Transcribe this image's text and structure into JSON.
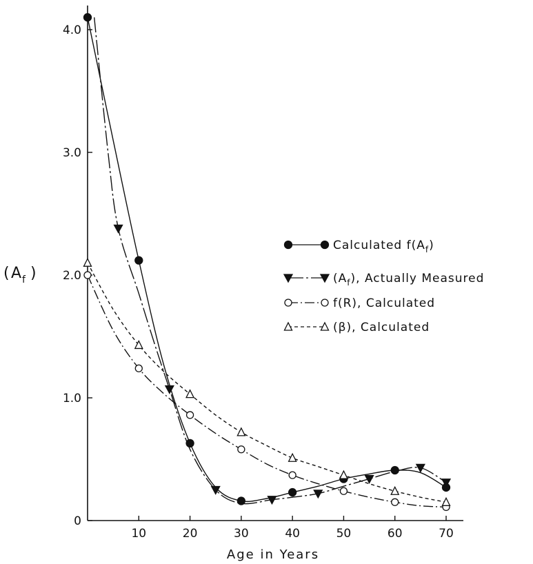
{
  "chart_data": {
    "type": "line",
    "xlabel": "Age in Years",
    "ylabel": {
      "main": "A",
      "sub": "f"
    },
    "xlim": [
      0,
      70
    ],
    "ylim": [
      0,
      4.1
    ],
    "x_ticks": [
      "10",
      "20",
      "30",
      "40",
      "50",
      "60",
      "70"
    ],
    "y_ticks": [
      "0",
      "1.0",
      "2.0",
      "3.0",
      "4.0"
    ],
    "grid": false,
    "legend_position": "right",
    "series": [
      {
        "name": "Calculated f(A",
        "name_sub": "f",
        "name_after": ")",
        "marker": "filled-circle",
        "dash": "solid",
        "x": [
          0,
          10,
          20,
          30,
          40,
          50,
          60,
          70
        ],
        "y": [
          4.1,
          2.12,
          0.63,
          0.16,
          0.23,
          0.34,
          0.41,
          0.27
        ],
        "curve": [
          [
            0,
            4.1
          ],
          [
            5,
            3.1
          ],
          [
            10,
            2.12
          ],
          [
            15,
            1.25
          ],
          [
            20,
            0.63
          ],
          [
            25,
            0.27
          ],
          [
            30,
            0.16
          ],
          [
            35,
            0.18
          ],
          [
            40,
            0.23
          ],
          [
            45,
            0.28
          ],
          [
            50,
            0.34
          ],
          [
            55,
            0.38
          ],
          [
            60,
            0.41
          ],
          [
            65,
            0.39
          ],
          [
            70,
            0.27
          ]
        ]
      },
      {
        "name": "(A",
        "name_sub": "f",
        "name_after": "), Actually Measured",
        "marker": "filled-triangle-down",
        "dash": "long-dash",
        "x": [
          6,
          16,
          25,
          36,
          45,
          55,
          65,
          70
        ],
        "y": [
          2.38,
          1.07,
          0.25,
          0.17,
          0.22,
          0.34,
          0.43,
          0.31
        ],
        "curve": [
          [
            1.3,
            4.1
          ],
          [
            4,
            3.0
          ],
          [
            6,
            2.38
          ],
          [
            10,
            1.85
          ],
          [
            13,
            1.45
          ],
          [
            16,
            1.07
          ],
          [
            20,
            0.58
          ],
          [
            25,
            0.25
          ],
          [
            30,
            0.14
          ],
          [
            36,
            0.17
          ],
          [
            40,
            0.19
          ],
          [
            45,
            0.22
          ],
          [
            50,
            0.28
          ],
          [
            55,
            0.34
          ],
          [
            60,
            0.4
          ],
          [
            65,
            0.43
          ],
          [
            70,
            0.31
          ]
        ]
      },
      {
        "name": "f(R), Calculated",
        "marker": "open-circle",
        "dash": "dash-dot",
        "x": [
          0,
          10,
          20,
          30,
          40,
          50,
          60,
          70
        ],
        "y": [
          2.0,
          1.24,
          0.86,
          0.58,
          0.37,
          0.24,
          0.15,
          0.11
        ],
        "curve": [
          [
            0,
            2.0
          ],
          [
            5,
            1.55
          ],
          [
            10,
            1.24
          ],
          [
            15,
            1.03
          ],
          [
            20,
            0.86
          ],
          [
            25,
            0.71
          ],
          [
            30,
            0.58
          ],
          [
            35,
            0.46
          ],
          [
            40,
            0.37
          ],
          [
            45,
            0.3
          ],
          [
            50,
            0.24
          ],
          [
            55,
            0.19
          ],
          [
            60,
            0.15
          ],
          [
            65,
            0.12
          ],
          [
            70,
            0.11
          ]
        ]
      },
      {
        "name": "(β), Calculated",
        "marker": "open-triangle-up",
        "dash": "short-dash",
        "x": [
          0,
          10,
          20,
          30,
          40,
          50,
          60,
          70
        ],
        "y": [
          2.1,
          1.43,
          1.03,
          0.72,
          0.51,
          0.37,
          0.24,
          0.15
        ],
        "curve": [
          [
            0,
            2.1
          ],
          [
            5,
            1.72
          ],
          [
            10,
            1.43
          ],
          [
            15,
            1.21
          ],
          [
            20,
            1.03
          ],
          [
            25,
            0.86
          ],
          [
            30,
            0.72
          ],
          [
            35,
            0.61
          ],
          [
            40,
            0.51
          ],
          [
            45,
            0.44
          ],
          [
            50,
            0.37
          ],
          [
            55,
            0.3
          ],
          [
            60,
            0.24
          ],
          [
            65,
            0.19
          ],
          [
            70,
            0.15
          ]
        ]
      }
    ]
  }
}
